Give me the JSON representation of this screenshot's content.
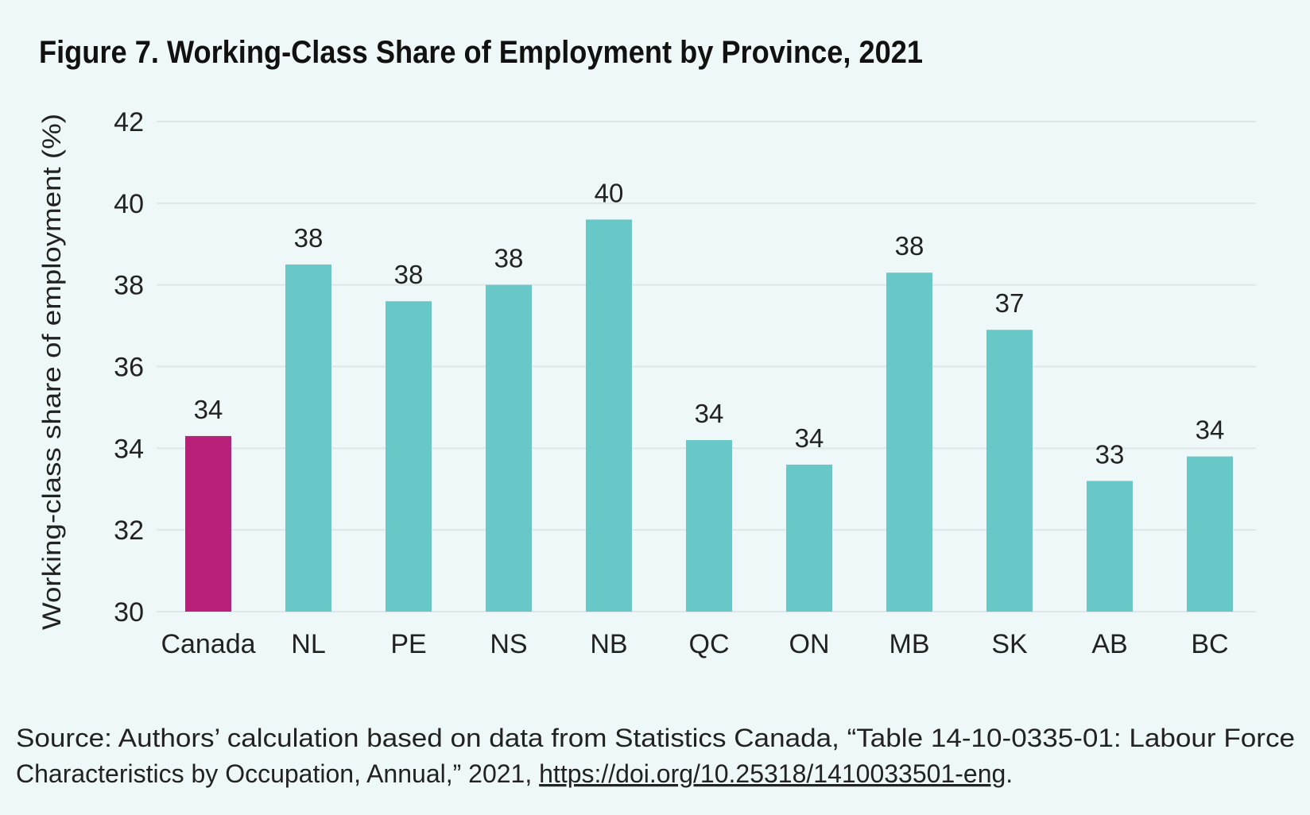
{
  "chart_data": {
    "type": "bar",
    "title": "Figure 7. Working-Class Share of Employment by Province, 2021",
    "xlabel": "",
    "ylabel": "Working-class share of employment  (%)",
    "ylim": [
      30,
      42
    ],
    "yticks": [
      "30",
      "32",
      "34",
      "36",
      "38",
      "40",
      "42"
    ],
    "grid": true,
    "categories": [
      "Canada",
      "NL",
      "PE",
      "NS",
      "NB",
      "QC",
      "ON",
      "MB",
      "SK",
      "AB",
      "BC"
    ],
    "values": [
      34.3,
      38.5,
      37.6,
      38.0,
      39.6,
      34.2,
      33.6,
      38.3,
      36.9,
      33.2,
      33.8
    ],
    "data_labels": [
      "34",
      "38",
      "38",
      "38",
      "40",
      "34",
      "34",
      "38",
      "37",
      "33",
      "34"
    ],
    "highlight_color": "#b8207a",
    "bar_color": "#68c8c8"
  },
  "source": {
    "line1": "Source: Authors’ calculation based on data from Statistics Canada, “Table 14-10-0335-01: Labour Force",
    "line2_prefix": "Characteristics by Occupation, Annual,” 2021, ",
    "link": "https://doi.org/10.25318/1410033501-eng",
    "line2_suffix": "."
  }
}
